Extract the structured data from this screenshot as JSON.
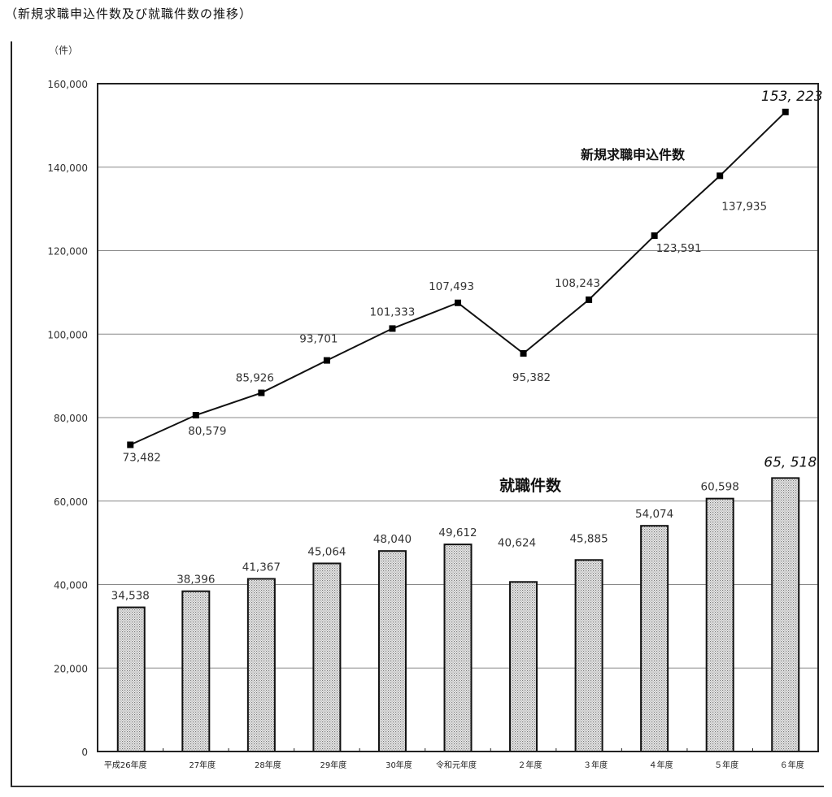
{
  "title": "（新規求職申込件数及び就職件数の推移）",
  "unit_label": "（件）",
  "y_ticks": [
    "160,000",
    "140,000",
    "120,000",
    "100,000",
    "80,000",
    "60,000",
    "40,000",
    "20,000",
    "0"
  ],
  "series_labels": {
    "line": "新規求職申込件数",
    "bar": "就職件数"
  },
  "chart_data": {
    "type": "bar+line",
    "title": "（新規求職申込件数及び就職件数の推移）",
    "xlabel": "",
    "ylabel": "（件）",
    "ylim": [
      0,
      160000
    ],
    "y_tick_step": 20000,
    "grid": true,
    "categories": [
      "平成26年度",
      "27年度",
      "28年度",
      "29年度",
      "30年度",
      "令和元年度",
      "２年度",
      "３年度",
      "４年度",
      "５年度",
      "６年度"
    ],
    "series": [
      {
        "name": "新規求職申込件数",
        "type": "line",
        "values": [
          73482,
          80579,
          85926,
          93701,
          101333,
          107493,
          95382,
          108243,
          123591,
          137935,
          153223
        ],
        "labels": [
          "73,482",
          "80,579",
          "85,926",
          "93,701",
          "101,333",
          "107,493",
          "95,382",
          "108,243",
          "123,591",
          "137,935",
          "153, 223"
        ]
      },
      {
        "name": "就職件数",
        "type": "bar",
        "values": [
          34538,
          38396,
          41367,
          45064,
          48040,
          49612,
          40624,
          45885,
          54074,
          60598,
          65518
        ],
        "labels": [
          "34,538",
          "38,396",
          "41,367",
          "45,064",
          "48,040",
          "49,612",
          "40,624",
          "45,885",
          "54,074",
          "60,598",
          "65, 518"
        ]
      }
    ]
  }
}
